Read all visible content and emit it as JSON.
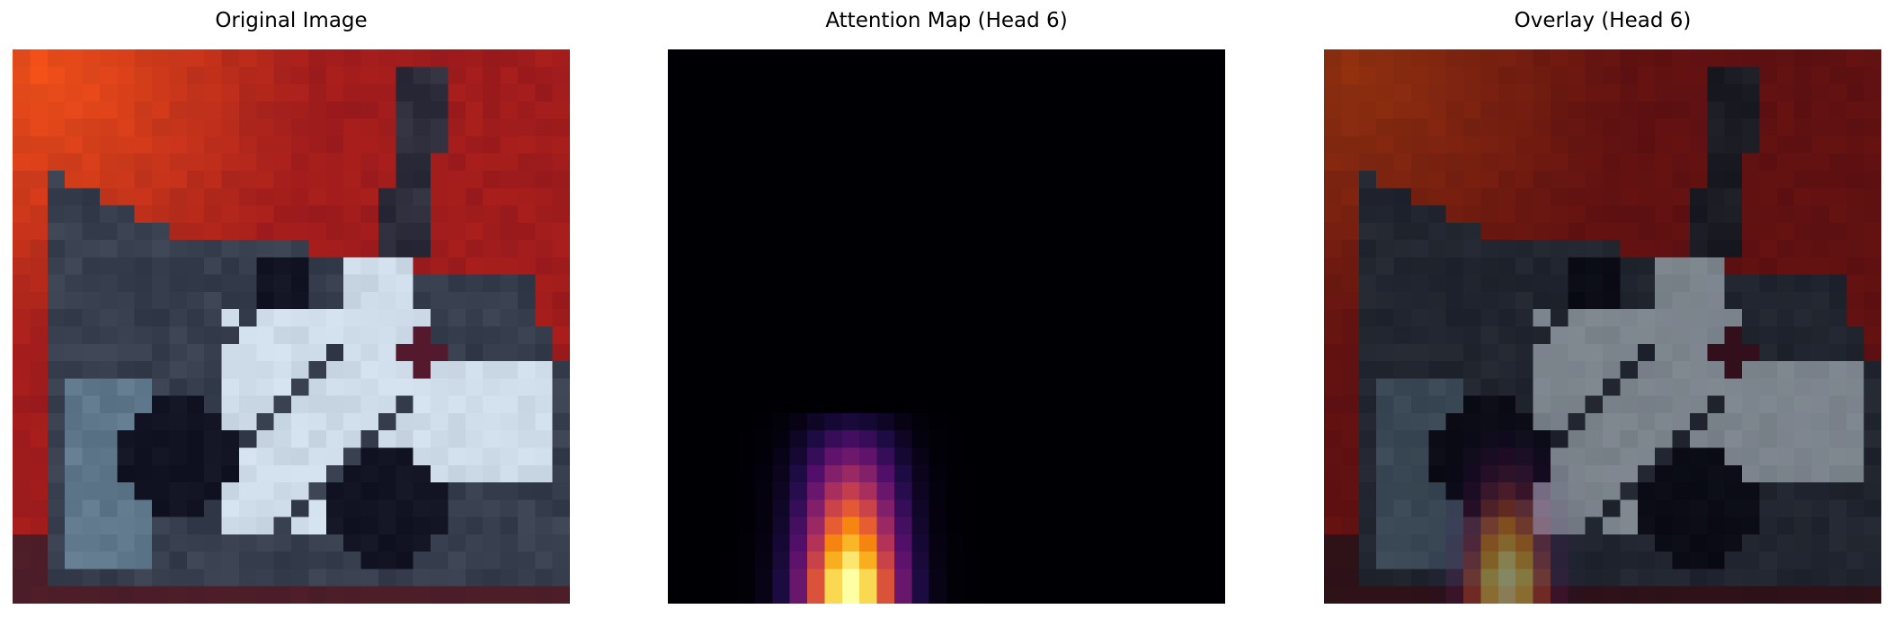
{
  "figure": {
    "panels": [
      {
        "title": "Original Image",
        "kind": "original"
      },
      {
        "title": "Attention Map (Head 6)",
        "kind": "attention",
        "colormap": "inferno"
      },
      {
        "title": "Overlay (Head 6)",
        "kind": "overlay"
      }
    ]
  }
}
